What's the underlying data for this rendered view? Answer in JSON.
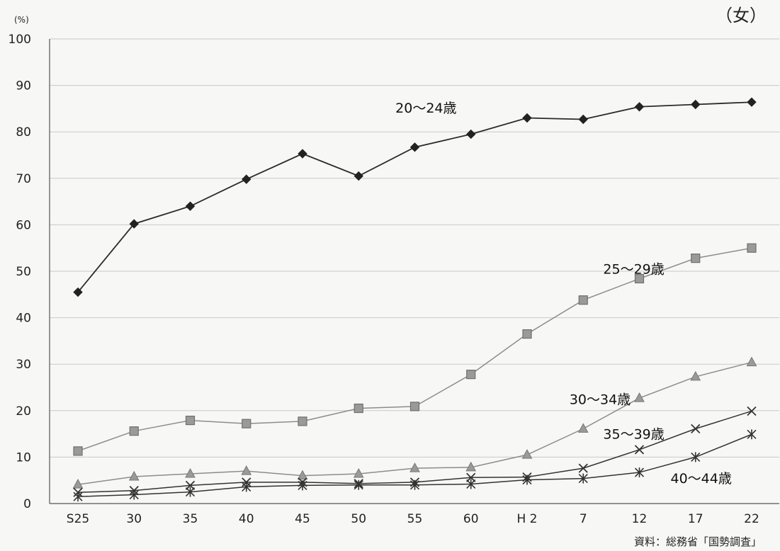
{
  "chart_data": {
    "type": "line",
    "unit_label": "(%)",
    "corner_label": "（女）",
    "source": "資料：総務省「国勢調査」",
    "ylim": [
      0,
      100
    ],
    "yticks": [
      "0",
      "10",
      "20",
      "30",
      "40",
      "50",
      "60",
      "70",
      "80",
      "90",
      "100"
    ],
    "categories": [
      "S25",
      "30",
      "35",
      "40",
      "45",
      "50",
      "55",
      "60",
      "H 2",
      "7",
      "12",
      "17",
      "22"
    ],
    "grid": true,
    "series": [
      {
        "name": "20～24歳",
        "marker": "diamond",
        "color": "#2b2b2b",
        "values": [
          45.5,
          60.2,
          64.0,
          69.8,
          75.3,
          70.5,
          76.7,
          79.5,
          83.0,
          82.7,
          85.4,
          85.9,
          86.4
        ]
      },
      {
        "name": "25～29歳",
        "marker": "square",
        "color": "#8c8c8c",
        "values": [
          11.3,
          15.6,
          17.9,
          17.2,
          17.7,
          20.5,
          20.9,
          27.8,
          36.5,
          43.8,
          48.4,
          52.8,
          55.0
        ]
      },
      {
        "name": "30～34歳",
        "marker": "triangle",
        "color": "#8c8c8c",
        "values": [
          4.1,
          5.8,
          6.4,
          7.0,
          6.0,
          6.4,
          7.6,
          7.8,
          10.5,
          16.1,
          22.7,
          27.3,
          30.4
        ]
      },
      {
        "name": "35～39歳",
        "marker": "x",
        "color": "#333333",
        "values": [
          2.4,
          2.8,
          3.9,
          4.6,
          4.6,
          4.3,
          4.6,
          5.6,
          5.7,
          7.6,
          11.6,
          16.1,
          19.9
        ]
      },
      {
        "name": "40～44歳",
        "marker": "asterisk",
        "color": "#333333",
        "values": [
          1.5,
          1.9,
          2.5,
          3.6,
          3.9,
          4.0,
          4.0,
          4.2,
          5.1,
          5.4,
          6.7,
          10.0,
          14.9
        ]
      }
    ],
    "series_label_positions": [
      "top-center",
      "right",
      "right",
      "right",
      "right"
    ]
  }
}
